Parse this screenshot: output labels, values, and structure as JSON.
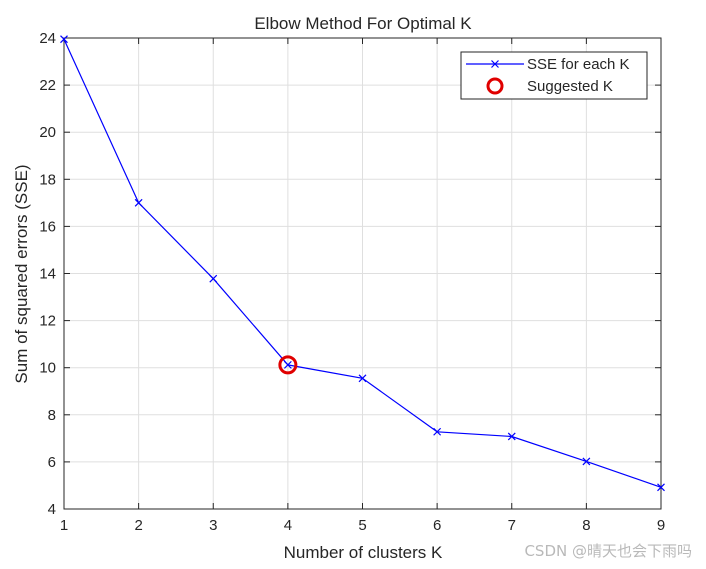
{
  "chart_data": {
    "type": "line",
    "title": "Elbow Method For Optimal K",
    "xlabel": "Number of clusters K",
    "ylabel": "Sum of squared errors (SSE)",
    "xlim": [
      1,
      9
    ],
    "ylim": [
      4,
      24
    ],
    "xticks": [
      1,
      2,
      3,
      4,
      5,
      6,
      7,
      8,
      9
    ],
    "yticks": [
      4,
      6,
      8,
      10,
      12,
      14,
      16,
      18,
      20,
      22,
      24
    ],
    "grid": true,
    "legend_position": "top-right",
    "series": [
      {
        "name": "SSE for each K",
        "color": "#0000ff",
        "marker": "x",
        "x": [
          1,
          2,
          3,
          4,
          5,
          6,
          7,
          8,
          9
        ],
        "y": [
          23.95,
          17.0,
          13.78,
          10.12,
          9.55,
          7.28,
          7.08,
          6.02,
          4.92
        ]
      },
      {
        "name": "Suggested K",
        "color": "#e00000",
        "marker": "o",
        "x": [
          4
        ],
        "y": [
          10.12
        ]
      }
    ]
  },
  "watermark": "CSDN @晴天也会下雨吗"
}
